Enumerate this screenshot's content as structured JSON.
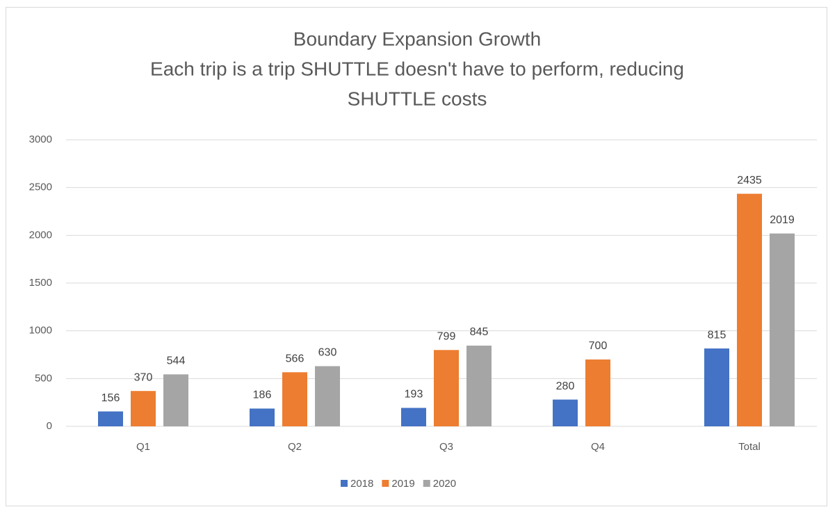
{
  "chart_data": {
    "type": "bar",
    "title": [
      "Boundary Expansion Growth",
      "Each trip is a trip SHUTTLE doesn't have to perform, reducing",
      "SHUTTLE costs"
    ],
    "categories": [
      "Q1",
      "Q2",
      "Q3",
      "Q4",
      "Total"
    ],
    "series": [
      {
        "name": "2018",
        "color": "#4472c4",
        "values": [
          156,
          186,
          193,
          280,
          815
        ]
      },
      {
        "name": "2019",
        "color": "#ed7d31",
        "values": [
          370,
          566,
          799,
          700,
          2435
        ]
      },
      {
        "name": "2020",
        "color": "#a5a5a5",
        "values": [
          544,
          630,
          845,
          null,
          2019
        ]
      }
    ],
    "ylim": [
      0,
      3000
    ],
    "yticks": [
      0,
      500,
      1000,
      1500,
      2000,
      2500,
      3000
    ],
    "grid": true,
    "legend": "bottom"
  }
}
